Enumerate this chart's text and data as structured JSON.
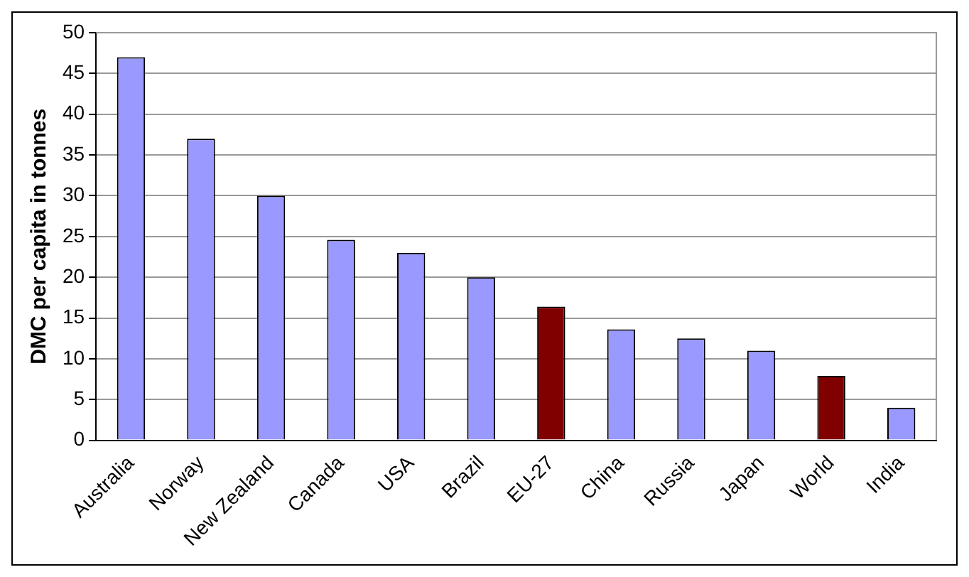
{
  "chart_data": {
    "type": "bar",
    "ylabel": "DMC per capita in tonnes",
    "categories": [
      "Australia",
      "Norway",
      "New Zealand",
      "Canada",
      "USA",
      "Brazil",
      "EU-27",
      "China",
      "Russia",
      "Japan",
      "World",
      "India"
    ],
    "values": [
      47,
      37,
      30,
      24.6,
      23,
      20,
      16.4,
      13.6,
      12.5,
      11,
      7.9,
      4
    ],
    "colors": [
      "#9999ff",
      "#9999ff",
      "#9999ff",
      "#9999ff",
      "#9999ff",
      "#9999ff",
      "#800000",
      "#9999ff",
      "#9999ff",
      "#9999ff",
      "#800000",
      "#9999ff"
    ],
    "ylim": [
      0,
      50
    ],
    "yticks": [
      0,
      5,
      10,
      15,
      20,
      25,
      30,
      35,
      40,
      45,
      50
    ],
    "grid": "y",
    "legend": false
  }
}
